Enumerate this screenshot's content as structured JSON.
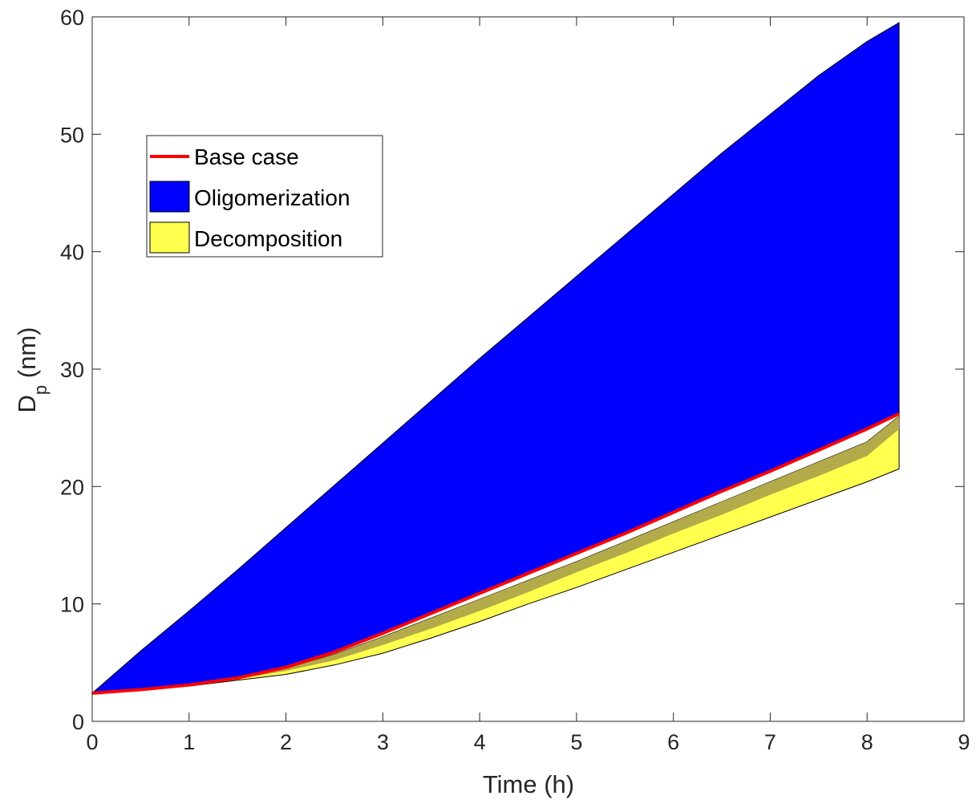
{
  "chart_data": {
    "type": "area",
    "xlabel": "Time (h)",
    "ylabel_main": "D",
    "ylabel_sub": "p",
    "ylabel_rest": " (nm)",
    "xlim": [
      0,
      9
    ],
    "ylim": [
      0,
      60
    ],
    "xticks": [
      "0",
      "1",
      "2",
      "3",
      "4",
      "5",
      "6",
      "7",
      "8",
      "9"
    ],
    "yticks": [
      "0",
      "10",
      "20",
      "30",
      "40",
      "50",
      "60"
    ],
    "grid": false,
    "legend_position": "upper-left",
    "colors": {
      "oligomerization": "#0000ff",
      "decomposition": "#ffff4d",
      "overlap": "#b3ab4a",
      "base_case": "#ff0000",
      "axis": "#262626"
    },
    "x": [
      0,
      0.5,
      1,
      1.5,
      2,
      2.5,
      3,
      3.5,
      4,
      4.5,
      5,
      5.5,
      6,
      6.5,
      7,
      7.5,
      8,
      8.33
    ],
    "series": [
      {
        "name": "Base case",
        "values": [
          2.4,
          2.7,
          3.1,
          3.7,
          4.6,
          5.9,
          7.5,
          9.2,
          10.9,
          12.6,
          14.3,
          16.0,
          17.8,
          19.6,
          21.3,
          23.1,
          24.9,
          26.2
        ]
      },
      {
        "name": "Oligomerization",
        "upper": [
          2.4,
          6.0,
          9.4,
          12.9,
          16.5,
          20.1,
          23.7,
          27.3,
          30.9,
          34.4,
          37.9,
          41.4,
          44.9,
          48.4,
          51.7,
          55.0,
          57.9,
          59.5
        ],
        "lower": [
          2.4,
          2.7,
          3.1,
          3.7,
          4.6,
          5.9,
          7.5,
          9.2,
          10.9,
          12.6,
          14.3,
          16.0,
          17.8,
          19.6,
          21.3,
          23.1,
          24.9,
          26.2
        ]
      },
      {
        "name": "Decomposition",
        "upper": [
          2.4,
          2.7,
          3.1,
          3.7,
          4.5,
          5.7,
          7.2,
          8.8,
          10.4,
          12.0,
          13.6,
          15.3,
          17.0,
          18.7,
          20.4,
          22.1,
          23.8,
          26.0
        ],
        "overlap_lower": [
          2.4,
          2.7,
          3.1,
          3.6,
          4.3,
          5.2,
          6.5,
          7.9,
          9.4,
          11.0,
          12.7,
          14.3,
          16.0,
          17.6,
          19.3,
          20.9,
          22.6,
          24.9
        ],
        "lower": [
          2.4,
          2.7,
          3.0,
          3.5,
          4.0,
          4.8,
          5.8,
          7.1,
          8.5,
          10.0,
          11.4,
          12.9,
          14.4,
          15.9,
          17.4,
          18.9,
          20.4,
          21.5
        ]
      }
    ]
  }
}
